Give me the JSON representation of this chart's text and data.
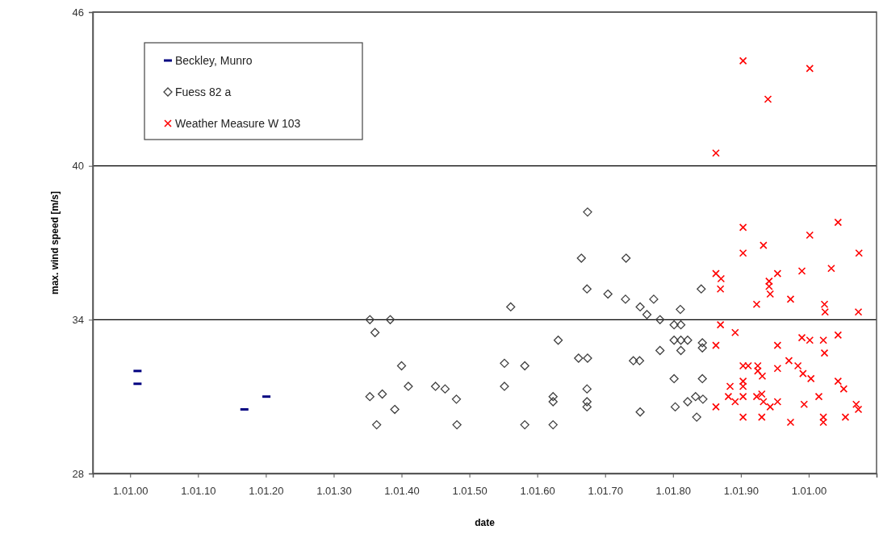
{
  "chart_data": {
    "type": "scatter",
    "xlabel": "date",
    "ylabel": "max. wind speed [m/s]",
    "xlim": [
      "1894-07",
      "2010-01"
    ],
    "ylim": [
      28,
      46
    ],
    "xticks": [
      {
        "value": "1900-01-01",
        "label": "1.01.00"
      },
      {
        "value": "1910-01-01",
        "label": "1.01.10"
      },
      {
        "value": "1920-01-01",
        "label": "1.01.20"
      },
      {
        "value": "1930-01-01",
        "label": "1.01.30"
      },
      {
        "value": "1940-01-01",
        "label": "1.01.40"
      },
      {
        "value": "1950-01-01",
        "label": "1.01.50"
      },
      {
        "value": "1960-01-01",
        "label": "1.01.60"
      },
      {
        "value": "1970-01-01",
        "label": "1.01.70"
      },
      {
        "value": "1980-01-01",
        "label": "1.01.80"
      },
      {
        "value": "1990-01-01",
        "label": "1.01.90"
      },
      {
        "value": "2000-01-01",
        "label": "1.01.00"
      }
    ],
    "yticks": [
      28,
      34,
      40,
      46
    ],
    "grid": "y",
    "legend": "top left",
    "series": [
      {
        "name": "Beckley, Munro",
        "color": "#000080",
        "x": [
          "1901-02",
          "1901-02",
          "1916-11",
          "1920-02"
        ],
        "values": [
          32.0,
          31.5,
          30.5,
          31.0
        ]
      },
      {
        "name": "Fuess 82 a",
        "color": "#404040",
        "marker": "diamond",
        "x": [
          "1935-05",
          "1938-05",
          "1936-02",
          "1940-01",
          "1935-05",
          "1937-03",
          "1941-01",
          "1939-01",
          "1936-05",
          "1945-01",
          "1946-06",
          "1948-02",
          "1948-03",
          "1955-03",
          "1955-03",
          "1958-03",
          "1958-03",
          "1956-02",
          "1963-02",
          "1962-05",
          "1962-05",
          "1962-05",
          "1966-02",
          "1967-06",
          "1967-05",
          "1967-05",
          "1967-05",
          "1967-06",
          "1966-07",
          "1967-05",
          "1970-06",
          "1973-02",
          "1973-01",
          "1975-03",
          "1976-03",
          "1977-03",
          "1978-02",
          "1981-02",
          "1980-03",
          "1981-03",
          "1984-03",
          "1980-03",
          "1981-03",
          "1982-03",
          "1981-03",
          "1978-02",
          "1984-05",
          "1984-05",
          "1974-03",
          "1975-02",
          "1980-03",
          "1984-05",
          "1975-03",
          "1980-05",
          "1982-03",
          "1983-05",
          "1984-06",
          "1983-07"
        ],
        "values": [
          34.0,
          34.0,
          33.5,
          32.2,
          31.0,
          31.1,
          31.4,
          30.5,
          29.9,
          31.4,
          31.3,
          30.9,
          29.9,
          32.3,
          31.4,
          32.2,
          29.9,
          34.5,
          33.2,
          31.0,
          30.8,
          29.9,
          32.5,
          32.5,
          31.3,
          30.8,
          30.6,
          38.2,
          36.4,
          35.2,
          35.0,
          36.4,
          34.8,
          34.5,
          34.2,
          34.8,
          34.0,
          34.4,
          33.8,
          33.8,
          35.2,
          33.2,
          33.2,
          33.2,
          32.8,
          32.8,
          33.1,
          32.9,
          32.4,
          32.4,
          31.7,
          31.7,
          30.4,
          30.6,
          30.8,
          31.0,
          30.9,
          30.2
        ]
      },
      {
        "name": "Weather Measure W 103",
        "color": "#ff0000",
        "marker": "cross",
        "x": [
          "1990-05",
          "1993-05",
          "2000-03",
          "2004-05",
          "1990-05",
          "2007-06",
          "1986-05",
          "1987-02",
          "1987-01",
          "1995-06",
          "1999-01",
          "2003-05",
          "1994-03",
          "1994-03",
          "1994-05",
          "1992-05",
          "1997-05",
          "2002-05",
          "2002-06",
          "2007-05",
          "1987-01",
          "1989-03",
          "1986-05",
          "1995-06",
          "1999-01",
          "2000-03",
          "2002-03",
          "2004-05",
          "2002-05",
          "1990-05",
          "1991-02",
          "1992-07",
          "1992-07",
          "1993-03",
          "1995-06",
          "1997-02",
          "1998-06",
          "1999-03",
          "2000-05",
          "2004-05",
          "2005-03",
          "1990-05",
          "1990-05",
          "1988-06",
          "1988-03",
          "1989-03",
          "1990-05",
          "1992-05",
          "1993-02",
          "1993-05",
          "1994-05",
          "1995-06",
          "2001-07",
          "1999-05",
          "1986-05",
          "2007-01",
          "2007-05",
          "1990-05",
          "1993-02",
          "1997-05",
          "2002-03",
          "2002-03",
          "2005-06",
          "1990-05",
          "2000-03",
          "1994-01",
          "1986-05"
        ],
        "values": [
          37.6,
          36.9,
          37.3,
          37.8,
          36.6,
          36.6,
          35.8,
          35.6,
          35.2,
          35.8,
          35.9,
          36.0,
          35.5,
          35.3,
          35.0,
          34.6,
          34.8,
          34.6,
          34.3,
          34.3,
          33.8,
          33.5,
          33.0,
          33.0,
          33.3,
          33.2,
          33.2,
          33.4,
          32.7,
          32.2,
          32.2,
          32.2,
          32.0,
          31.8,
          32.1,
          32.4,
          32.2,
          31.9,
          31.7,
          31.6,
          31.3,
          31.6,
          31.4,
          31.4,
          31.0,
          30.8,
          31.0,
          31.0,
          31.1,
          30.8,
          30.6,
          30.8,
          31.0,
          30.7,
          30.6,
          30.7,
          30.5,
          30.2,
          30.2,
          30.0,
          30.2,
          30.0,
          30.2,
          44.1,
          43.8,
          42.6,
          40.5
        ]
      }
    ]
  }
}
